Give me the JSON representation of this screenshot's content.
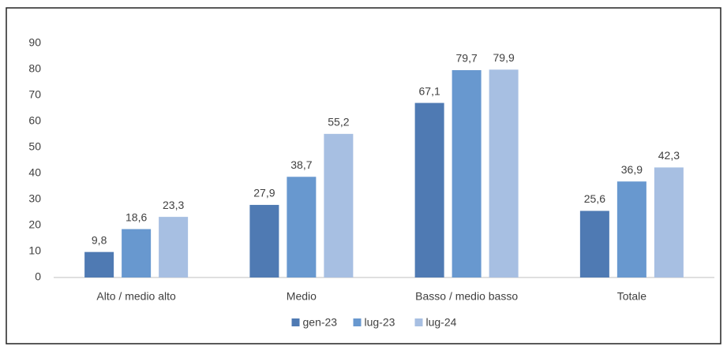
{
  "chart_data": {
    "type": "bar",
    "categories": [
      "Alto / medio alto",
      "Medio",
      "Basso / medio basso",
      "Totale"
    ],
    "series": [
      {
        "name": "gen-23",
        "color": "#4f7ab3",
        "values": [
          9.8,
          27.9,
          67.1,
          25.6
        ],
        "value_labels": [
          "9,8",
          "27,9",
          "67,1",
          "25,6"
        ]
      },
      {
        "name": "lug-23",
        "color": "#6898cf",
        "values": [
          18.6,
          38.7,
          79.7,
          36.9
        ],
        "value_labels": [
          "18,6",
          "38,7",
          "79,7",
          "36,9"
        ]
      },
      {
        "name": "lug-24",
        "color": "#a7bfe2",
        "values": [
          23.3,
          55.2,
          79.9,
          42.3
        ],
        "value_labels": [
          "23,3",
          "55,2",
          "79,9",
          "42,3"
        ]
      }
    ],
    "ylim": [
      0,
      90
    ],
    "yticks": [
      0,
      10,
      20,
      30,
      40,
      50,
      60,
      70,
      80,
      90
    ],
    "grid": false,
    "legend": "bottom"
  }
}
